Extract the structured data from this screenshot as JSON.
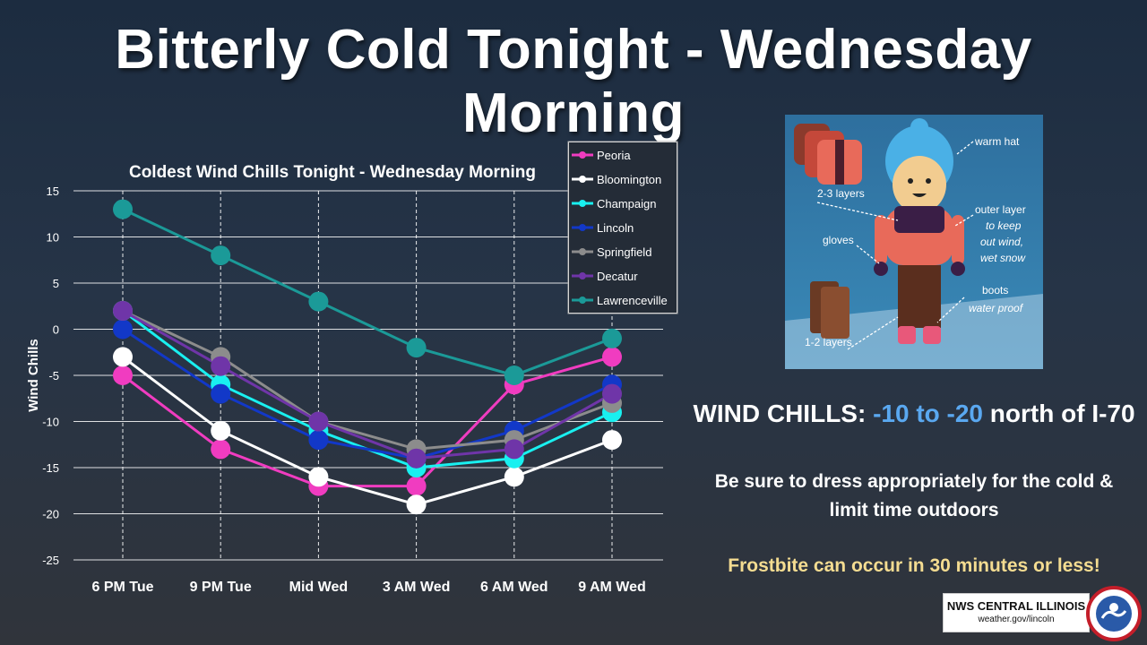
{
  "title": "Bitterly Cold Tonight - Wednesday Morning",
  "chart_data": {
    "type": "line",
    "title": "Coldest Wind Chills Tonight - Wednesday Morning",
    "xlabel": "",
    "ylabel": "Wind Chills",
    "ylim": [
      -25,
      15
    ],
    "yticks": [
      15,
      10,
      5,
      0,
      -5,
      -10,
      -15,
      -20,
      -25
    ],
    "categories": [
      "6 PM Tue",
      "9 PM Tue",
      "Mid Wed",
      "3 AM Wed",
      "6 AM Wed",
      "9 AM Wed"
    ],
    "grid": true,
    "legend_position": "top-right",
    "series": [
      {
        "name": "Peoria",
        "color": "#f03cc0",
        "values": [
          -5,
          -13,
          -17,
          -17,
          -6,
          -3
        ]
      },
      {
        "name": "Bloomington",
        "color": "#ffffff",
        "values": [
          -3,
          -11,
          -16,
          -19,
          -16,
          -12
        ]
      },
      {
        "name": "Champaign",
        "color": "#19f0f0",
        "values": [
          2,
          -6,
          -11,
          -15,
          -14,
          -9
        ]
      },
      {
        "name": "Lincoln",
        "color": "#1238c8",
        "values": [
          0,
          -7,
          -12,
          -14,
          -11,
          -6
        ]
      },
      {
        "name": "Springfield",
        "color": "#8c8c8c",
        "values": [
          2,
          -3,
          -10,
          -13,
          -12,
          -8
        ]
      },
      {
        "name": "Decatur",
        "color": "#6f35a8",
        "values": [
          2,
          -4,
          -10,
          -14,
          -13,
          -7
        ]
      },
      {
        "name": "Lawrenceville",
        "color": "#1b9a98",
        "values": [
          13,
          8,
          3,
          -2,
          -5,
          -1
        ]
      }
    ]
  },
  "illustration": {
    "labels": [
      "warm hat",
      "2-3 layers",
      "outer layer",
      "to keep",
      "out wind,",
      "wet snow",
      "gloves",
      "boots",
      "water proof",
      "1-2 layers"
    ]
  },
  "wind_chills": {
    "prefix": "WIND CHILLS: ",
    "range": "-10 to -20",
    "suffix": " north of I-70"
  },
  "advice": "Be sure to dress appropriately for the cold & limit time outdoors",
  "frostbite": "Frostbite can occur in 30 minutes or less!",
  "logo": {
    "line1": "NWS CENTRAL ILLINOIS",
    "line2": "weather.gov/lincoln"
  },
  "colors": {
    "accent_blue": "#5aa8f0",
    "frost_yellow": "#f4dc91"
  }
}
